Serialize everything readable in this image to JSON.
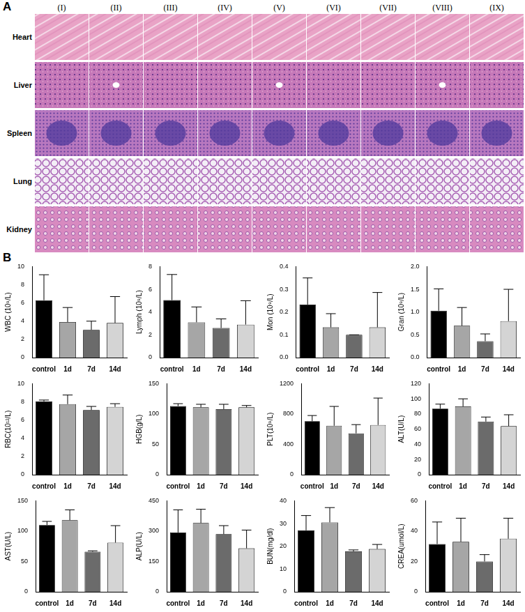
{
  "panel_a": {
    "label": "A",
    "columns": [
      "(I)",
      "(II)",
      "(III)",
      "(IV)",
      "(V)",
      "(VI)",
      "(VII)",
      "(VIII)",
      "(IX)"
    ],
    "rows": [
      "Heart",
      "Liver",
      "Spleen",
      "Lung",
      "Kidney"
    ]
  },
  "panel_b": {
    "label": "B"
  },
  "chart_data": [
    {
      "type": "bar",
      "y_label": "WBC (10⁹/L)",
      "categories": [
        "control",
        "1d",
        "7d",
        "14d"
      ],
      "values": [
        6.3,
        3.9,
        3.05,
        3.8
      ],
      "errors": [
        2.8,
        1.6,
        0.95,
        2.9
      ],
      "colors": [
        "#000000",
        "#a6a6a6",
        "#6b6b6b",
        "#d4d4d4"
      ],
      "ylim": [
        0,
        10
      ],
      "yticks": [
        0,
        2,
        4,
        6,
        8,
        10
      ],
      "grid": false
    },
    {
      "type": "bar",
      "y_label": "Lymph (10⁹/L)",
      "categories": [
        "control",
        "1d",
        "7d",
        "14d"
      ],
      "values": [
        5.05,
        3.1,
        2.6,
        2.9
      ],
      "errors": [
        2.25,
        1.35,
        0.8,
        2.1
      ],
      "colors": [
        "#000000",
        "#a6a6a6",
        "#6b6b6b",
        "#d4d4d4"
      ],
      "ylim": [
        0,
        8
      ],
      "yticks": [
        0,
        2,
        4,
        6,
        8
      ],
      "grid": false
    },
    {
      "type": "bar",
      "y_label": "Mon (10⁹/L)",
      "categories": [
        "control",
        "1d",
        "7d",
        "14d"
      ],
      "values": [
        0.233,
        0.133,
        0.1,
        0.133
      ],
      "errors": [
        0.117,
        0.06,
        0,
        0.153
      ],
      "colors": [
        "#000000",
        "#a6a6a6",
        "#6b6b6b",
        "#d4d4d4"
      ],
      "ylim": [
        0,
        0.4
      ],
      "yticks": [
        {
          "value": 0,
          "label": "0.0"
        },
        0.1,
        0.2,
        0.3,
        0.4
      ],
      "grid": false
    },
    {
      "type": "bar",
      "y_label": "Gran (10⁹/L)",
      "categories": [
        "control",
        "1d",
        "7d",
        "14d"
      ],
      "values": [
        1.03,
        0.7,
        0.36,
        0.8
      ],
      "errors": [
        0.48,
        0.4,
        0.16,
        0.7
      ],
      "colors": [
        "#000000",
        "#a6a6a6",
        "#6b6b6b",
        "#d4d4d4"
      ],
      "ylim": [
        0,
        2
      ],
      "yticks": [
        {
          "value": 0,
          "label": "0.0"
        },
        0.5,
        {
          "value": 1,
          "label": "1.0"
        },
        1.5,
        {
          "value": 2,
          "label": "2.0"
        }
      ],
      "grid": false
    },
    {
      "type": "bar",
      "y_label": "RBC(10¹²/L)",
      "categories": [
        "control",
        "1d",
        "7d",
        "14d"
      ],
      "values": [
        8.05,
        7.75,
        7.1,
        7.45
      ],
      "errors": [
        0.15,
        1.0,
        0.4,
        0.35
      ],
      "colors": [
        "#000000",
        "#a6a6a6",
        "#6b6b6b",
        "#d4d4d4"
      ],
      "ylim": [
        0,
        10
      ],
      "yticks": [
        0,
        2,
        4,
        6,
        8,
        10
      ],
      "grid": false
    },
    {
      "type": "bar",
      "y_label": "HGB(g/L)",
      "categories": [
        "control",
        "1d",
        "7d",
        "14d"
      ],
      "values": [
        113,
        111,
        108,
        111
      ],
      "errors": [
        4,
        5,
        8,
        3
      ],
      "colors": [
        "#000000",
        "#a6a6a6",
        "#6b6b6b",
        "#d4d4d4"
      ],
      "ylim": [
        0,
        150
      ],
      "yticks": [
        0,
        50,
        100,
        150
      ],
      "grid": false
    },
    {
      "type": "bar",
      "y_label": "PLT(10⁹/L)",
      "categories": [
        "control",
        "1d",
        "7d",
        "14d"
      ],
      "values": [
        705,
        645,
        545,
        655
      ],
      "errors": [
        75,
        255,
        115,
        355
      ],
      "colors": [
        "#000000",
        "#a6a6a6",
        "#6b6b6b",
        "#d4d4d4"
      ],
      "ylim": [
        0,
        1200
      ],
      "yticks": [
        0,
        400,
        800,
        1200
      ],
      "grid": false
    },
    {
      "type": "bar",
      "y_label": "ALT(U/L)",
      "categories": [
        "control",
        "1d",
        "7d",
        "14d"
      ],
      "values": [
        87,
        90,
        70,
        64
      ],
      "errors": [
        6,
        10,
        6,
        15
      ],
      "colors": [
        "#000000",
        "#a6a6a6",
        "#6b6b6b",
        "#d4d4d4"
      ],
      "ylim": [
        0,
        120
      ],
      "yticks": [
        0,
        20,
        40,
        60,
        80,
        100,
        120
      ],
      "grid": false
    },
    {
      "type": "bar",
      "y_label": "AST(U/L)",
      "categories": [
        "control",
        "1d",
        "7d",
        "14d"
      ],
      "values": [
        110,
        118,
        66,
        81
      ],
      "errors": [
        6,
        17,
        1.5,
        28
      ],
      "colors": [
        "#000000",
        "#a6a6a6",
        "#6b6b6b",
        "#d4d4d4"
      ],
      "ylim": [
        0,
        150
      ],
      "yticks": [
        0,
        50,
        100,
        150
      ],
      "grid": false
    },
    {
      "type": "bar",
      "y_label": "ALP(U/L)",
      "categories": [
        "control",
        "1d",
        "7d",
        "14d"
      ],
      "values": [
        293,
        340,
        285,
        215
      ],
      "errors": [
        112,
        68,
        42,
        90
      ],
      "colors": [
        "#000000",
        "#a6a6a6",
        "#6b6b6b",
        "#d4d4d4"
      ],
      "ylim": [
        0,
        450
      ],
      "yticks": [
        0,
        150,
        300,
        450
      ],
      "grid": false
    },
    {
      "type": "bar",
      "y_label": "BUN(mg/dl)",
      "categories": [
        "control",
        "1d",
        "7d",
        "14d"
      ],
      "values": [
        27,
        30.5,
        17.8,
        18.8
      ],
      "errors": [
        6.5,
        6.5,
        0.6,
        2
      ],
      "colors": [
        "#000000",
        "#a6a6a6",
        "#6b6b6b",
        "#d4d4d4"
      ],
      "ylim": [
        0,
        40
      ],
      "yticks": [
        0,
        10,
        20,
        30,
        40
      ],
      "grid": false
    },
    {
      "type": "bar",
      "y_label": "CREA(umol/L)",
      "categories": [
        "control",
        "1d",
        "7d",
        "14d"
      ],
      "values": [
        31.5,
        33,
        20,
        35
      ],
      "errors": [
        14.5,
        15.5,
        4.5,
        13.5
      ],
      "colors": [
        "#000000",
        "#a6a6a6",
        "#6b6b6b",
        "#d4d4d4"
      ],
      "ylim": [
        0,
        60
      ],
      "yticks": [
        0,
        20,
        40,
        60
      ],
      "grid": false
    }
  ]
}
